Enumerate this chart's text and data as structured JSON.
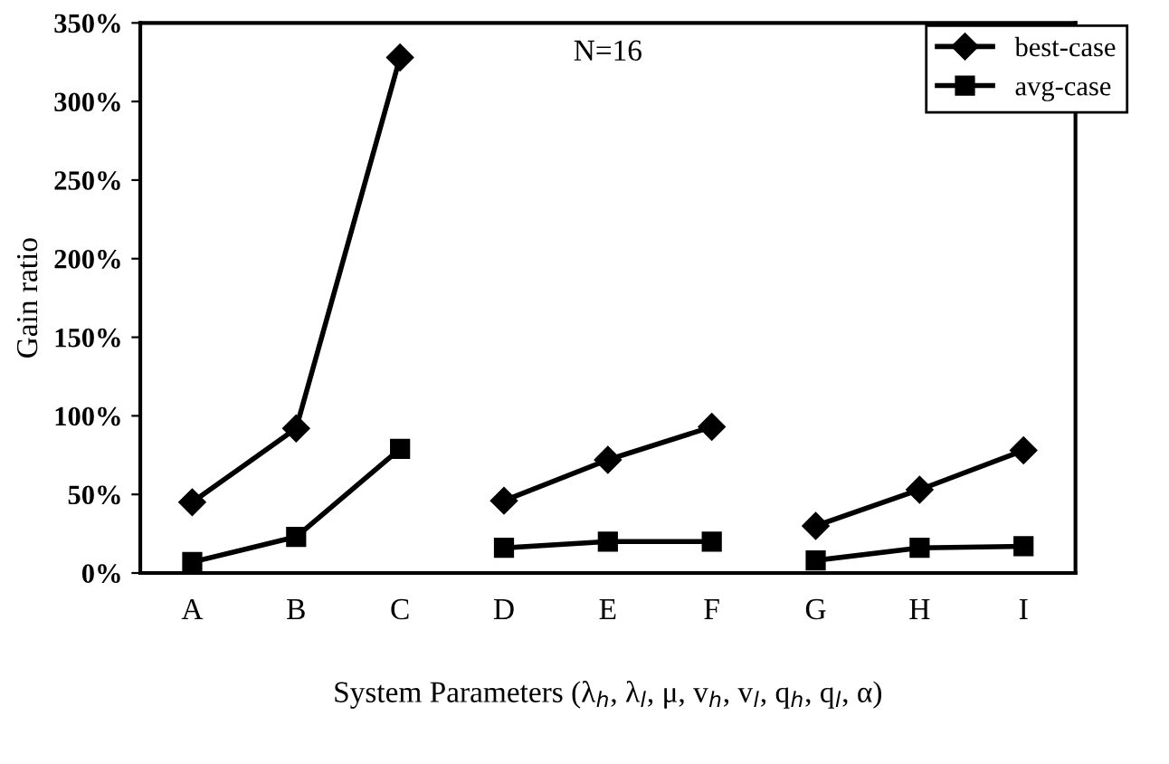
{
  "chart_data": {
    "type": "line",
    "ylabel": "Gain ratio",
    "xlabel": "System Parameters (λ$_{h}$, λ$_{l}$, μ, v$_{h}$, v$_{l}$, q$_{h}$, q$_{l}$, α)",
    "annotations": [
      "N=16"
    ],
    "categories": [
      "A",
      "B",
      "C",
      "D",
      "E",
      "F",
      "G",
      "H",
      "I"
    ],
    "ylim": [
      0,
      350
    ],
    "yticks": [
      {
        "value": 0,
        "label": "0%"
      },
      {
        "value": 50,
        "label": "50%"
      },
      {
        "value": 100,
        "label": "100%"
      },
      {
        "value": 150,
        "label": "150%"
      },
      {
        "value": 200,
        "label": "200%"
      },
      {
        "value": 250,
        "label": "250%"
      },
      {
        "value": 300,
        "label": "300%"
      },
      {
        "value": 350,
        "label": "350%"
      }
    ],
    "grid": false,
    "legend": "top right",
    "series": [
      {
        "name": "best-case",
        "color": "#000000",
        "marker": "diamond",
        "values": [
          45,
          92,
          328,
          null,
          null,
          null,
          null,
          null,
          null
        ]
      },
      {
        "color": "#000000",
        "marker": "diamond",
        "values": [
          null,
          null,
          null,
          46,
          72,
          93,
          null,
          null,
          null
        ]
      },
      {
        "color": "#000000",
        "marker": "diamond",
        "values": [
          null,
          null,
          null,
          null,
          null,
          null,
          30,
          53,
          78
        ]
      },
      {
        "name": "avg-case",
        "color": "#000000",
        "marker": "square",
        "values": [
          7,
          23,
          79,
          null,
          null,
          null,
          null,
          null,
          null
        ]
      },
      {
        "color": "#000000",
        "marker": "square",
        "values": [
          null,
          null,
          null,
          16,
          20,
          20,
          null,
          null,
          null
        ]
      },
      {
        "color": "#000000",
        "marker": "square",
        "values": [
          null,
          null,
          null,
          null,
          null,
          null,
          8,
          16,
          17
        ]
      }
    ]
  }
}
